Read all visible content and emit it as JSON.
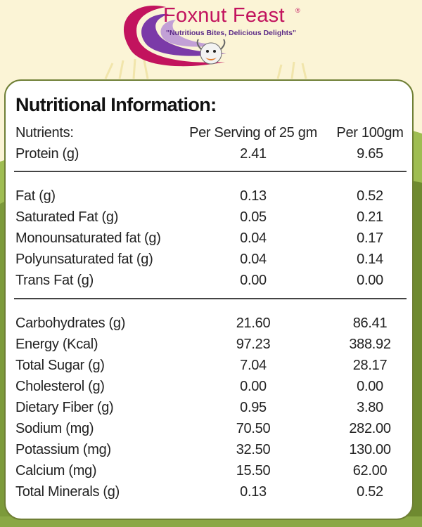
{
  "brand": {
    "name": "Foxnut Feast",
    "registered_mark": "®",
    "tagline": "\"Nutritious Bites, Delicious Delights\"",
    "logo_icon": "swoosh-mascot-icon"
  },
  "table": {
    "title": "Nutritional Information:",
    "header": {
      "label": "Nutrients:",
      "per_serving": "Per Serving of 25 gm",
      "per_100": "Per 100gm"
    },
    "groups": [
      [
        {
          "name": "Protein (g)",
          "serving": "2.41",
          "per100": "9.65"
        }
      ],
      [
        {
          "name": "Fat (g)",
          "serving": "0.13",
          "per100": "0.52"
        },
        {
          "name": "Saturated Fat (g)",
          "serving": "0.05",
          "per100": "0.21"
        },
        {
          "name": "Monounsaturated fat (g)",
          "serving": "0.04",
          "per100": "0.17"
        },
        {
          "name": "Polyunsaturated fat (g)",
          "serving": "0.04",
          "per100": "0.14"
        },
        {
          "name": "Trans Fat (g)",
          "serving": "0.00",
          "per100": "0.00"
        }
      ],
      [
        {
          "name": "Carbohydrates (g)",
          "serving": "21.60",
          "per100": "86.41"
        },
        {
          "name": "Energy (Kcal)",
          "serving": "97.23",
          "per100": "388.92"
        },
        {
          "name": "Total Sugar (g)",
          "serving": "7.04",
          "per100": "28.17"
        },
        {
          "name": "Cholesterol (g)",
          "serving": "0.00",
          "per100": "0.00"
        },
        {
          "name": "Dietary Fiber (g)",
          "serving": "0.95",
          "per100": "3.80"
        },
        {
          "name": "Sodium (mg)",
          "serving": "70.50",
          "per100": "282.00"
        },
        {
          "name": "Potassium (mg)",
          "serving": "32.50",
          "per100": "130.00"
        },
        {
          "name": "Calcium (mg)",
          "serving": "15.50",
          "per100": "62.00"
        },
        {
          "name": "Total Minerals (g)",
          "serving": "0.13",
          "per100": "0.52"
        }
      ]
    ]
  },
  "colors": {
    "brand_pink": "#c2135e",
    "brand_purple": "#5b2a86",
    "card_border": "#6f7f35",
    "background_cream": "#fbf4d6",
    "hill_green": "#7c9a3a"
  }
}
